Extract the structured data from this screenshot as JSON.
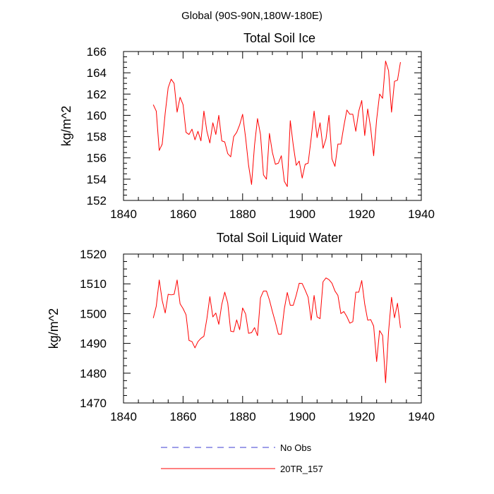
{
  "figure": {
    "title": "Global (90S-90N,180W-180E)"
  },
  "legend": {
    "entries": [
      {
        "label": "No Obs",
        "color": "#3c3cd2",
        "style": "dashed"
      },
      {
        "label": "20TR_157",
        "color": "#ff0000",
        "style": "solid"
      }
    ]
  },
  "chart_data": [
    {
      "type": "line",
      "title": "Total Soil Ice",
      "xlabel": "",
      "ylabel": "kg/m^2",
      "xlim": [
        1840,
        1940
      ],
      "ylim": [
        152,
        166
      ],
      "x_ticks": [
        1840,
        1860,
        1880,
        1900,
        1920,
        1940
      ],
      "y_ticks": [
        152,
        154,
        156,
        158,
        160,
        162,
        164,
        166
      ],
      "series": [
        {
          "name": "20TR_157",
          "color": "#ff0000",
          "x": [
            1850,
            1851,
            1852,
            1853,
            1854,
            1855,
            1856,
            1857,
            1858,
            1859,
            1860,
            1861,
            1862,
            1863,
            1864,
            1865,
            1866,
            1867,
            1868,
            1869,
            1870,
            1871,
            1872,
            1873,
            1874,
            1875,
            1876,
            1877,
            1878,
            1879,
            1880,
            1881,
            1882,
            1883,
            1884,
            1885,
            1886,
            1887,
            1888,
            1889,
            1890,
            1891,
            1892,
            1893,
            1894,
            1895,
            1896,
            1897,
            1898,
            1899,
            1900,
            1901,
            1902,
            1903,
            1904,
            1905,
            1906,
            1907,
            1908,
            1909,
            1910,
            1911,
            1912,
            1913,
            1914,
            1915,
            1916,
            1917,
            1918,
            1919,
            1920,
            1921,
            1922,
            1923,
            1924,
            1925,
            1926,
            1927,
            1928,
            1929,
            1930,
            1931,
            1932,
            1933
          ],
          "y": [
            161.0,
            160.4,
            156.7,
            157.3,
            160.2,
            162.6,
            163.4,
            163.0,
            160.3,
            161.7,
            161.0,
            158.4,
            158.2,
            158.7,
            157.7,
            158.5,
            157.6,
            160.4,
            158.5,
            157.4,
            159.3,
            158.2,
            160.0,
            157.6,
            157.5,
            156.4,
            156.1,
            158.0,
            158.4,
            159.1,
            160.1,
            157.9,
            155.3,
            153.5,
            157.2,
            159.7,
            158.2,
            154.4,
            154.0,
            158.3,
            156.5,
            155.4,
            155.5,
            156.2,
            153.8,
            153.3,
            159.5,
            157.2,
            155.3,
            155.7,
            154.1,
            155.4,
            155.5,
            157.8,
            160.4,
            157.9,
            159.3,
            156.9,
            157.8,
            160.0,
            155.9,
            155.2,
            157.3,
            157.3,
            159.0,
            160.5,
            160.1,
            160.1,
            158.5,
            160.4,
            161.4,
            158.1,
            160.6,
            158.8,
            156.2,
            159.6,
            162.0,
            161.6,
            165.1,
            164.2,
            160.3,
            163.2,
            163.3,
            165.0
          ]
        }
      ]
    },
    {
      "type": "line",
      "title": "Total Soil Liquid Water",
      "xlabel": "",
      "ylabel": "kg/m^2",
      "xlim": [
        1840,
        1940
      ],
      "ylim": [
        1470,
        1520
      ],
      "x_ticks": [
        1840,
        1860,
        1880,
        1900,
        1920,
        1940
      ],
      "y_ticks": [
        1470,
        1480,
        1490,
        1500,
        1510,
        1520
      ],
      "series": [
        {
          "name": "20TR_157",
          "color": "#ff0000",
          "x": [
            1850,
            1851,
            1852,
            1853,
            1854,
            1855,
            1856,
            1857,
            1858,
            1859,
            1860,
            1861,
            1862,
            1863,
            1864,
            1865,
            1866,
            1867,
            1868,
            1869,
            1870,
            1871,
            1872,
            1873,
            1874,
            1875,
            1876,
            1877,
            1878,
            1879,
            1880,
            1881,
            1882,
            1883,
            1884,
            1885,
            1886,
            1887,
            1888,
            1889,
            1890,
            1891,
            1892,
            1893,
            1894,
            1895,
            1896,
            1897,
            1898,
            1899,
            1900,
            1901,
            1902,
            1903,
            1904,
            1905,
            1906,
            1907,
            1908,
            1909,
            1910,
            1911,
            1912,
            1913,
            1914,
            1915,
            1916,
            1917,
            1918,
            1919,
            1920,
            1921,
            1922,
            1923,
            1924,
            1925,
            1926,
            1927,
            1928,
            1929,
            1930,
            1931,
            1932,
            1933
          ],
          "y": [
            1498.5,
            1502.5,
            1511.3,
            1504.4,
            1500.2,
            1506.5,
            1506.3,
            1506.5,
            1511.3,
            1503.3,
            1501.7,
            1499.6,
            1491.0,
            1490.6,
            1488.5,
            1490.6,
            1491.7,
            1492.4,
            1498.3,
            1505.7,
            1498.9,
            1500.2,
            1496.4,
            1503.1,
            1507.2,
            1503.6,
            1494.1,
            1493.9,
            1497.9,
            1494.6,
            1501.9,
            1499.9,
            1493.4,
            1493.6,
            1495.3,
            1492.6,
            1505.3,
            1507.6,
            1507.6,
            1504.6,
            1500.7,
            1497.1,
            1493.1,
            1493.1,
            1501.6,
            1507.1,
            1502.8,
            1502.8,
            1506.2,
            1510.2,
            1510.1,
            1507.9,
            1505.5,
            1497.8,
            1506.1,
            1498.9,
            1498.3,
            1510.7,
            1512.0,
            1511.4,
            1510.2,
            1507.6,
            1506.1,
            1500.0,
            1500.7,
            1499.0,
            1496.8,
            1497.3,
            1507.2,
            1507.2,
            1511.1,
            1503.2,
            1497.8,
            1498.0,
            1495.8,
            1483.9,
            1494.3,
            1492.7,
            1476.8,
            1493.9,
            1505.5,
            1498.6,
            1503.5,
            1495.2
          ]
        }
      ]
    }
  ]
}
